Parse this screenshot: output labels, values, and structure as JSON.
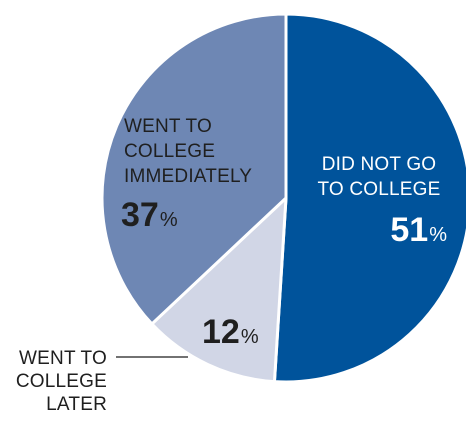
{
  "chart_data": {
    "type": "pie",
    "slices": [
      {
        "label_lines": [
          "DID NOT GO",
          "TO COLLEGE"
        ],
        "value": 51,
        "percent_text": "51",
        "color": "#00539b",
        "text_color": "#ffffff"
      },
      {
        "label_lines": [
          "WENT TO",
          "COLLEGE",
          "LATER"
        ],
        "value": 12,
        "percent_text": "12",
        "color": "#d1d6e6",
        "text_color": "#1f1f1f"
      },
      {
        "label_lines": [
          "WENT TO",
          "COLLEGE",
          "IMMEDIATELY"
        ],
        "value": 37,
        "percent_text": "37",
        "color": "#6e87b4",
        "text_color": "#1f1f1f"
      }
    ],
    "percent_symbol": "%",
    "slice_border_color": "#ffffff"
  }
}
